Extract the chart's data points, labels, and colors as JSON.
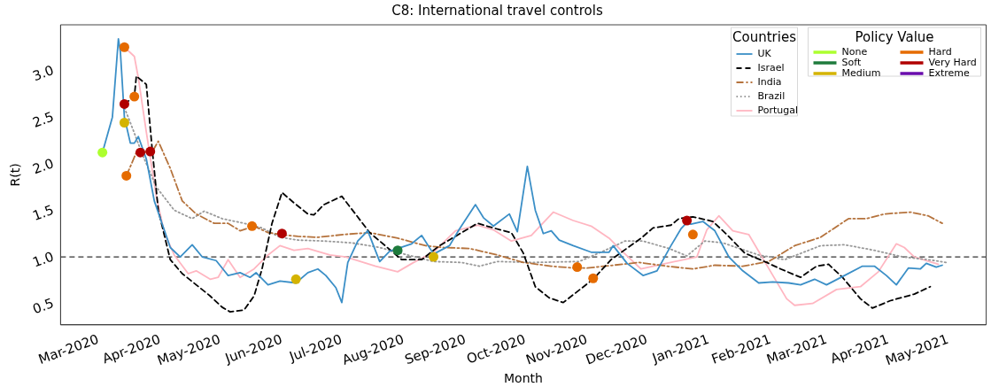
{
  "chart_data": {
    "type": "line",
    "title": "C8: International travel controls",
    "xlabel": "Month",
    "ylabel": "R(t)",
    "legend": "top right",
    "legend_title": "Countries",
    "annotations": [
      "Policy Value"
    ],
    "xlim": [
      "2020-02-11",
      "2021-05-20"
    ],
    "ylim": [
      0.27,
      3.49
    ],
    "yticks": [
      {
        "value": 0.5,
        "label": "0.5"
      },
      {
        "value": 1,
        "label": "1.0"
      },
      {
        "value": 1.5,
        "label": "1.5"
      },
      {
        "value": 2,
        "label": "2.0"
      },
      {
        "value": 2.5,
        "label": "2.5"
      },
      {
        "value": 3,
        "label": "3.0"
      }
    ],
    "xticks": [
      {
        "value": "2020-03-01",
        "label": "Mar-2020"
      },
      {
        "value": "2020-04-01",
        "label": "Apr-2020"
      },
      {
        "value": "2020-05-01",
        "label": "May-2020"
      },
      {
        "value": "2020-06-01",
        "label": "Jun-2020"
      },
      {
        "value": "2020-07-01",
        "label": "Jul-2020"
      },
      {
        "value": "2020-08-01",
        "label": "Aug-2020"
      },
      {
        "value": "2020-09-01",
        "label": "Sep-2020"
      },
      {
        "value": "2020-10-01",
        "label": "Oct-2020"
      },
      {
        "value": "2020-11-01",
        "label": "Nov-2020"
      },
      {
        "value": "2020-12-01",
        "label": "Dec-2020"
      },
      {
        "value": "2021-01-01",
        "label": "Jan-2021"
      },
      {
        "value": "2021-02-01",
        "label": "Feb-2021"
      },
      {
        "value": "2021-03-01",
        "label": "Mar-2021"
      },
      {
        "value": "2021-04-01",
        "label": "Apr-2021"
      },
      {
        "value": "2021-05-01",
        "label": "May-2021"
      }
    ],
    "ref_lines": [
      {
        "axis": "y",
        "value": 1.0,
        "color": "#333333",
        "line_style": "dashed"
      }
    ],
    "series": [
      {
        "name": "UK",
        "color": "#3b8fc7",
        "line_style": "solid",
        "x": [
          "2020-03-03",
          "2020-03-08",
          "2020-03-11",
          "2020-03-12",
          "2020-03-14",
          "2020-03-17",
          "2020-03-19",
          "2020-03-21",
          "2020-03-25",
          "2020-03-29",
          "2020-04-02",
          "2020-04-06",
          "2020-04-11",
          "2020-04-17",
          "2020-04-22",
          "2020-04-29",
          "2020-05-05",
          "2020-05-11",
          "2020-05-16",
          "2020-05-19",
          "2020-05-25",
          "2020-05-31",
          "2020-06-08",
          "2020-06-14",
          "2020-06-19",
          "2020-06-23",
          "2020-06-28",
          "2020-07-01",
          "2020-07-04",
          "2020-07-09",
          "2020-07-14",
          "2020-07-20",
          "2020-07-25",
          "2020-08-05",
          "2020-08-10",
          "2020-08-16",
          "2020-08-24",
          "2020-08-29",
          "2020-09-06",
          "2020-09-10",
          "2020-09-15",
          "2020-09-23",
          "2020-09-27",
          "2020-10-02",
          "2020-10-06",
          "2020-10-10",
          "2020-10-14",
          "2020-10-18",
          "2020-10-25",
          "2020-11-03",
          "2020-11-12",
          "2020-11-14",
          "2020-11-21",
          "2020-11-29",
          "2020-12-06",
          "2020-12-13",
          "2020-12-18",
          "2020-12-21",
          "2020-12-23",
          "2020-12-29",
          "2021-01-04",
          "2021-01-11",
          "2021-01-18",
          "2021-01-26",
          "2021-02-02",
          "2021-02-10",
          "2021-02-16",
          "2021-02-23",
          "2021-03-01",
          "2021-03-10",
          "2021-03-19",
          "2021-03-25",
          "2021-03-31",
          "2021-04-05",
          "2021-04-11",
          "2021-04-17",
          "2021-04-20",
          "2021-04-25",
          "2021-04-28"
        ],
        "values": [
          2.12,
          2.5,
          3.34,
          3.2,
          2.5,
          2.22,
          2.22,
          2.29,
          2.05,
          1.6,
          1.35,
          1.1,
          1.0,
          1.13,
          1.0,
          0.96,
          0.8,
          0.83,
          0.78,
          0.83,
          0.7,
          0.74,
          0.72,
          0.83,
          0.87,
          0.8,
          0.67,
          0.51,
          0.94,
          1.17,
          1.28,
          0.95,
          1.06,
          1.14,
          1.23,
          1.03,
          1.12,
          1.3,
          1.56,
          1.42,
          1.33,
          1.46,
          1.27,
          1.97,
          1.5,
          1.25,
          1.28,
          1.18,
          1.12,
          1.05,
          1.05,
          1.12,
          0.93,
          0.8,
          0.85,
          1.12,
          1.3,
          1.37,
          1.35,
          1.38,
          1.28,
          1.0,
          0.85,
          0.72,
          0.73,
          0.72,
          0.7,
          0.76,
          0.7,
          0.8,
          0.9,
          0.9,
          0.8,
          0.7,
          0.88,
          0.87,
          0.93,
          0.89,
          0.91
        ]
      },
      {
        "name": "Israel",
        "color": "#000000",
        "line_style": "dashed",
        "x": [
          "2020-03-14",
          "2020-03-19",
          "2020-03-20",
          "2020-03-25",
          "2020-03-28",
          "2020-03-31",
          "2020-04-06",
          "2020-04-12",
          "2020-04-19",
          "2020-04-26",
          "2020-05-02",
          "2020-05-06",
          "2020-05-13",
          "2020-05-18",
          "2020-05-22",
          "2020-05-27",
          "2020-06-01",
          "2020-06-07",
          "2020-06-14",
          "2020-06-17",
          "2020-06-22",
          "2020-07-01",
          "2020-07-15",
          "2020-07-31",
          "2020-08-10",
          "2020-08-19",
          "2020-09-07",
          "2020-09-15",
          "2020-09-24",
          "2020-09-30",
          "2020-10-06",
          "2020-10-13",
          "2020-10-20",
          "2020-10-26",
          "2020-11-04",
          "2020-11-13",
          "2020-11-28",
          "2020-12-04",
          "2020-12-13",
          "2020-12-17",
          "2020-12-24",
          "2021-01-03",
          "2021-01-10",
          "2021-01-19",
          "2021-01-30",
          "2021-02-06",
          "2021-02-16",
          "2021-02-24",
          "2021-03-02",
          "2021-03-09",
          "2021-03-18",
          "2021-03-24",
          "2021-04-02",
          "2021-04-14",
          "2021-04-22"
        ],
        "values": [
          2.64,
          2.72,
          2.94,
          2.85,
          2.14,
          1.5,
          0.97,
          0.82,
          0.7,
          0.58,
          0.46,
          0.41,
          0.43,
          0.58,
          0.87,
          1.36,
          1.69,
          1.58,
          1.46,
          1.45,
          1.56,
          1.65,
          1.26,
          0.97,
          0.97,
          1.12,
          1.36,
          1.31,
          1.26,
          1.04,
          0.68,
          0.56,
          0.51,
          0.61,
          0.76,
          0.97,
          1.2,
          1.31,
          1.34,
          1.41,
          1.43,
          1.38,
          1.24,
          1.04,
          0.94,
          0.87,
          0.78,
          0.9,
          0.92,
          0.78,
          0.55,
          0.45,
          0.53,
          0.6,
          0.68
        ]
      },
      {
        "name": "India",
        "color": "#b5733d",
        "line_style": "dashdot",
        "x": [
          "2020-03-15",
          "2020-03-20",
          "2020-03-28",
          "2020-03-31",
          "2020-04-06",
          "2020-04-12",
          "2020-04-19",
          "2020-04-28",
          "2020-05-05",
          "2020-05-11",
          "2020-05-18",
          "2020-05-25",
          "2020-05-31",
          "2020-06-09",
          "2020-06-19",
          "2020-07-02",
          "2020-07-15",
          "2020-07-29",
          "2020-08-12",
          "2020-08-21",
          "2020-09-03",
          "2020-09-17",
          "2020-09-30",
          "2020-10-14",
          "2020-10-25",
          "2020-11-01",
          "2020-11-14",
          "2020-11-27",
          "2020-12-11",
          "2020-12-24",
          "2021-01-04",
          "2021-01-18",
          "2021-01-31",
          "2021-02-13",
          "2021-02-26",
          "2021-03-12",
          "2021-03-21",
          "2021-03-30",
          "2021-04-12",
          "2021-04-21",
          "2021-04-28"
        ],
        "values": [
          1.87,
          2.12,
          2.13,
          2.24,
          1.95,
          1.6,
          1.46,
          1.36,
          1.36,
          1.28,
          1.33,
          1.26,
          1.24,
          1.22,
          1.21,
          1.24,
          1.26,
          1.2,
          1.12,
          1.1,
          1.09,
          1.02,
          0.94,
          0.9,
          0.88,
          0.88,
          0.91,
          0.94,
          0.9,
          0.87,
          0.91,
          0.9,
          0.95,
          1.12,
          1.21,
          1.41,
          1.41,
          1.46,
          1.48,
          1.44,
          1.36
        ]
      },
      {
        "name": "Brazil",
        "color": "#999999",
        "line_style": "dotted",
        "x": [
          "2020-03-14",
          "2020-03-17",
          "2020-03-23",
          "2020-03-30",
          "2020-04-08",
          "2020-04-17",
          "2020-04-23",
          "2020-05-02",
          "2020-05-13",
          "2020-05-22",
          "2020-05-31",
          "2020-06-09",
          "2020-06-22",
          "2020-07-06",
          "2020-07-20",
          "2020-08-03",
          "2020-08-16",
          "2020-08-30",
          "2020-09-08",
          "2020-09-17",
          "2020-10-05",
          "2020-10-28",
          "2020-11-10",
          "2020-11-20",
          "2020-11-29",
          "2020-12-12",
          "2020-12-21",
          "2020-12-30",
          "2021-01-08",
          "2021-01-26",
          "2021-02-08",
          "2021-02-26",
          "2021-03-10",
          "2021-03-25",
          "2021-04-08",
          "2021-04-21",
          "2021-04-30"
        ],
        "values": [
          2.6,
          2.44,
          2.1,
          1.75,
          1.5,
          1.41,
          1.49,
          1.41,
          1.36,
          1.31,
          1.21,
          1.18,
          1.17,
          1.15,
          1.1,
          1.02,
          0.95,
          0.94,
          0.9,
          0.95,
          0.94,
          0.95,
          1.07,
          1.17,
          1.17,
          1.09,
          1.01,
          1.17,
          1.15,
          1.02,
          0.97,
          1.12,
          1.13,
          1.07,
          1.0,
          0.97,
          0.94
        ]
      },
      {
        "name": "Portugal",
        "color": "#ffb6c1",
        "line_style": "solid",
        "x": [
          "2020-03-14",
          "2020-03-19",
          "2020-03-21",
          "2020-03-25",
          "2020-03-30",
          "2020-04-03",
          "2020-04-08",
          "2020-04-15",
          "2020-04-19",
          "2020-04-26",
          "2020-04-30",
          "2020-05-05",
          "2020-05-11",
          "2020-05-18",
          "2020-05-25",
          "2020-05-31",
          "2020-06-07",
          "2020-06-14",
          "2020-06-25",
          "2020-07-03",
          "2020-07-18",
          "2020-07-29",
          "2020-08-06",
          "2020-08-16",
          "2020-08-27",
          "2020-09-07",
          "2020-09-15",
          "2020-09-24",
          "2020-10-04",
          "2020-10-15",
          "2020-10-25",
          "2020-11-03",
          "2020-11-12",
          "2020-11-18",
          "2020-11-28",
          "2020-12-04",
          "2020-12-26",
          "2020-12-31",
          "2021-01-06",
          "2021-01-13",
          "2021-01-21",
          "2021-02-01",
          "2021-02-09",
          "2021-02-13",
          "2021-02-22",
          "2021-03-06",
          "2021-03-18",
          "2021-03-27",
          "2021-04-05",
          "2021-04-09",
          "2021-04-14",
          "2021-04-26"
        ],
        "values": [
          3.25,
          3.15,
          2.92,
          2.34,
          1.65,
          1.26,
          1.02,
          0.82,
          0.85,
          0.76,
          0.78,
          0.97,
          0.78,
          0.87,
          1.02,
          1.12,
          1.07,
          1.09,
          1.02,
          1.0,
          0.9,
          0.84,
          0.94,
          1.05,
          1.28,
          1.34,
          1.29,
          1.17,
          1.23,
          1.48,
          1.39,
          1.33,
          1.2,
          1.07,
          0.87,
          0.9,
          1.0,
          1.29,
          1.44,
          1.28,
          1.24,
          0.84,
          0.55,
          0.48,
          0.5,
          0.65,
          0.68,
          0.84,
          1.14,
          1.1,
          1.0,
          0.92
        ]
      },
      {
        "name": "None",
        "type": "scatter",
        "marker": "circle",
        "color": "#adff2f",
        "x": [
          "2020-03-03"
        ],
        "values": [
          2.12
        ]
      },
      {
        "name": "Soft",
        "type": "scatter",
        "marker": "circle",
        "color": "#1e7b3c",
        "x": [
          "2020-07-29"
        ],
        "values": [
          1.07
        ]
      },
      {
        "name": "Medium",
        "type": "scatter",
        "marker": "circle",
        "color": "#d4b300",
        "x": [
          "2020-03-14",
          "2020-06-08",
          "2020-08-16"
        ],
        "values": [
          2.44,
          0.76,
          1.0
        ]
      },
      {
        "name": "Hard",
        "type": "scatter",
        "marker": "circle",
        "color": "#e56b00",
        "x": [
          "2020-03-14",
          "2020-03-19",
          "2020-03-15",
          "2020-05-17",
          "2020-10-27",
          "2020-11-04",
          "2020-12-24"
        ],
        "values": [
          3.25,
          2.72,
          1.87,
          1.33,
          0.89,
          0.77,
          1.24
        ]
      },
      {
        "name": "Very Hard",
        "type": "scatter",
        "marker": "circle",
        "color": "#b00000",
        "x": [
          "2020-03-14",
          "2020-03-22",
          "2020-03-27",
          "2020-06-01",
          "2020-12-21"
        ],
        "values": [
          2.64,
          2.12,
          2.13,
          1.25,
          1.39
        ]
      },
      {
        "name": "Extreme",
        "type": "scatter",
        "marker": "circle",
        "color": "#6a0dad"
      }
    ]
  }
}
